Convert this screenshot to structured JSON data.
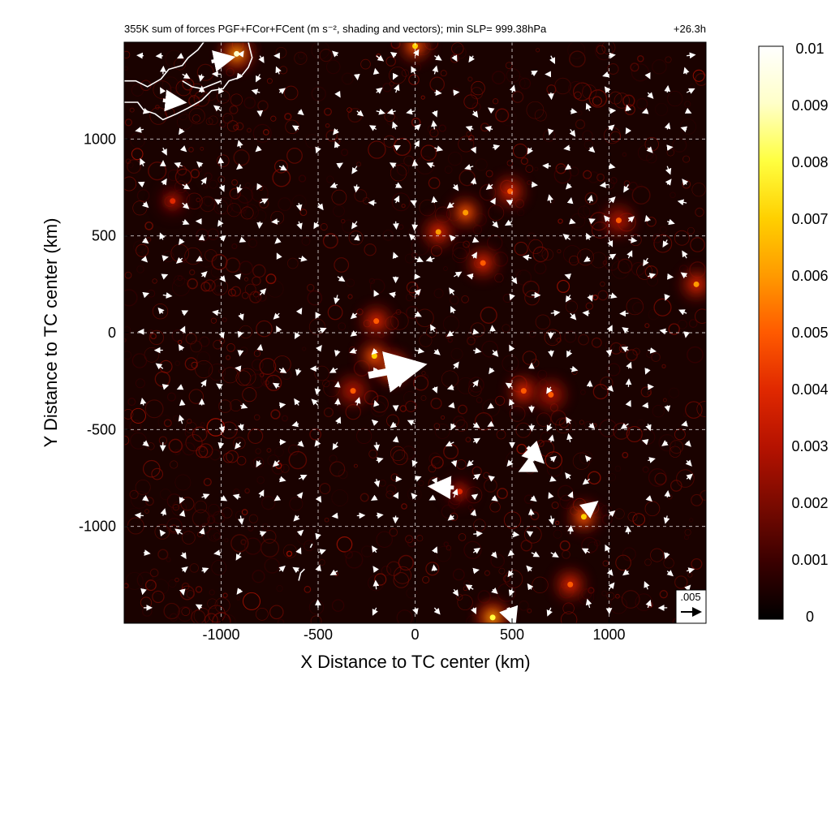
{
  "chart_data": {
    "type": "heatmap",
    "title": "355K sum of forces PGF+FCor+FCent (m s⁻², shading and vectors); min SLP= 999.38hPa",
    "time_label": "+26.3h",
    "xlabel": "X Distance to TC center (km)",
    "ylabel": "Y Distance to TC center (km)",
    "xlim": [
      -1500,
      1500
    ],
    "ylim": [
      -1500,
      1500
    ],
    "xticks": [
      -1000,
      -500,
      0,
      500,
      1000
    ],
    "yticks": [
      -1000,
      -500,
      0,
      500,
      1000
    ],
    "xtick_labels": [
      "-1000",
      "-500",
      "0",
      "500",
      "1000"
    ],
    "ytick_labels": [
      "-1000",
      "-500",
      "0",
      "500",
      "1000"
    ],
    "grid": true,
    "grid_style": "dashed white",
    "colorbar": {
      "min": 0,
      "max": 0.01,
      "ticks": [
        "0.01",
        "0.009",
        "0.008",
        "0.007",
        "0.006",
        "0.005",
        "0.004",
        "0.003",
        "0.002",
        "0.001",
        "0"
      ],
      "colormap": [
        "#000000",
        "#3a0000",
        "#7a0a00",
        "#b51200",
        "#e02800",
        "#ff5a00",
        "#ff9a00",
        "#ffd000",
        "#ffff40",
        "#ffffc8",
        "#ffffff"
      ]
    },
    "reference_vector": {
      "label": ".005",
      "magnitude": 0.005
    },
    "hotspots": [
      {
        "x": -120,
        "y": -180,
        "value": 0.0085
      },
      {
        "x": -210,
        "y": -120,
        "value": 0.007
      },
      {
        "x": -200,
        "y": 60,
        "value": 0.0055
      },
      {
        "x": -320,
        "y": -300,
        "value": 0.0045
      },
      {
        "x": 120,
        "y": 520,
        "value": 0.006
      },
      {
        "x": 260,
        "y": 620,
        "value": 0.0065
      },
      {
        "x": 350,
        "y": 360,
        "value": 0.005
      },
      {
        "x": 490,
        "y": 730,
        "value": 0.0055
      },
      {
        "x": 560,
        "y": -300,
        "value": 0.005
      },
      {
        "x": 700,
        "y": -320,
        "value": 0.0045
      },
      {
        "x": 870,
        "y": -950,
        "value": 0.007
      },
      {
        "x": 800,
        "y": -1300,
        "value": 0.005
      },
      {
        "x": 400,
        "y": -1470,
        "value": 0.008
      },
      {
        "x": 1450,
        "y": 250,
        "value": 0.006
      },
      {
        "x": -920,
        "y": 1440,
        "value": 0.009
      },
      {
        "x": 0,
        "y": 1480,
        "value": 0.007
      },
      {
        "x": -1250,
        "y": 680,
        "value": 0.004
      },
      {
        "x": 230,
        "y": -820,
        "value": 0.004
      },
      {
        "x": 1050,
        "y": 580,
        "value": 0.0045
      }
    ],
    "big_vectors": [
      {
        "x": -240,
        "y": -220,
        "u": 0.013,
        "v": 0.0025
      },
      {
        "x": 200,
        "y": -800,
        "u": -0.0055,
        "v": 0.0003
      },
      {
        "x": 580,
        "y": -590,
        "u": 0.0035,
        "v": -0.0035
      },
      {
        "x": 610,
        "y": -680,
        "u": -0.003,
        "v": -0.0015
      },
      {
        "x": -1050,
        "y": 1400,
        "u": 0.005,
        "v": 0.001
      },
      {
        "x": -1300,
        "y": 1200,
        "u": 0.005,
        "v": -0.0005
      },
      {
        "x": 480,
        "y": -1420,
        "u": 0.0015,
        "v": -0.004
      },
      {
        "x": 880,
        "y": -920,
        "u": 0.0025,
        "v": 0.002
      }
    ],
    "coastline": [
      [
        [
          -1500,
          1300
        ],
        [
          -1440,
          1300
        ],
        [
          -1380,
          1270
        ],
        [
          -1310,
          1310
        ],
        [
          -1270,
          1360
        ],
        [
          -1200,
          1380
        ],
        [
          -1170,
          1420
        ],
        [
          -1120,
          1460
        ],
        [
          -1090,
          1500
        ]
      ],
      [
        [
          -1500,
          1190
        ],
        [
          -1430,
          1190
        ],
        [
          -1400,
          1150
        ],
        [
          -1340,
          1130
        ],
        [
          -1300,
          1100
        ],
        [
          -1230,
          1130
        ],
        [
          -1170,
          1160
        ],
        [
          -1100,
          1200
        ],
        [
          -1050,
          1250
        ],
        [
          -990,
          1260
        ],
        [
          -960,
          1300
        ],
        [
          -900,
          1320
        ],
        [
          -860,
          1370
        ],
        [
          -840,
          1420
        ],
        [
          -860,
          1500
        ]
      ],
      [
        [
          -1200,
          1300
        ],
        [
          -1150,
          1270
        ],
        [
          -1100,
          1260
        ],
        [
          -1050,
          1280
        ],
        [
          -1000,
          1300
        ]
      ],
      [
        [
          -600,
          -1280
        ],
        [
          -590,
          -1240
        ],
        [
          -570,
          -1220
        ]
      ],
      [
        [
          -540,
          -1110
        ],
        [
          -530,
          -1090
        ]
      ]
    ]
  }
}
